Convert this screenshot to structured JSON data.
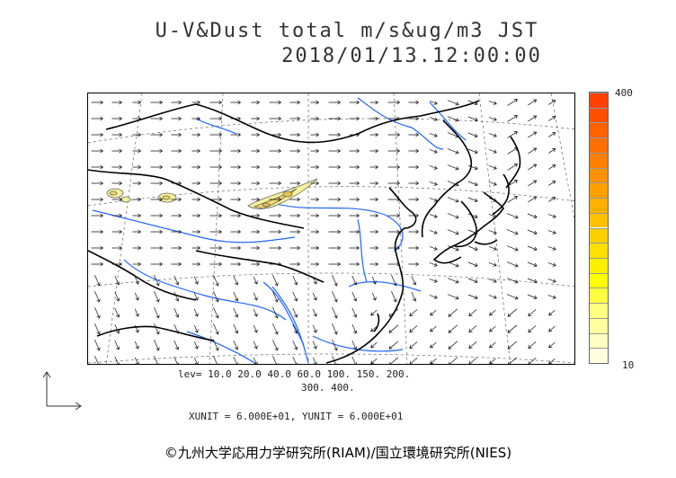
{
  "title": {
    "line1": "U-V&Dust total m/s&ug/m3 JST",
    "line2": "2018/01/13.12:00:00"
  },
  "colorbar": {
    "max_label": "400",
    "min_label": "10",
    "colors": [
      "#ffffe0",
      "#ffffc0",
      "#ffffa0",
      "#ffff80",
      "#ffff40",
      "#ffff00",
      "#fff000",
      "#ffe000",
      "#ffd000",
      "#ffc000",
      "#ffb000",
      "#ffa000",
      "#ff9000",
      "#ff8000",
      "#ff7000",
      "#ff6000",
      "#ff5000",
      "#ff4000"
    ]
  },
  "levels": {
    "line1": "lev= 10.0 20.0 40.0 60.0 100. 150. 200.",
    "line2": "300. 400."
  },
  "units": "XUNIT = 6.000E+01, YUNIT = 6.000E+01",
  "copyright": "©九州大学応用力学研究所(RIAM)/国立環境研究所(NIES)",
  "map_colors": {
    "coast": "#000000",
    "river": "#1e64ff",
    "grid": "#555555",
    "arrow": "#111111",
    "dust": "#f6f19a"
  }
}
